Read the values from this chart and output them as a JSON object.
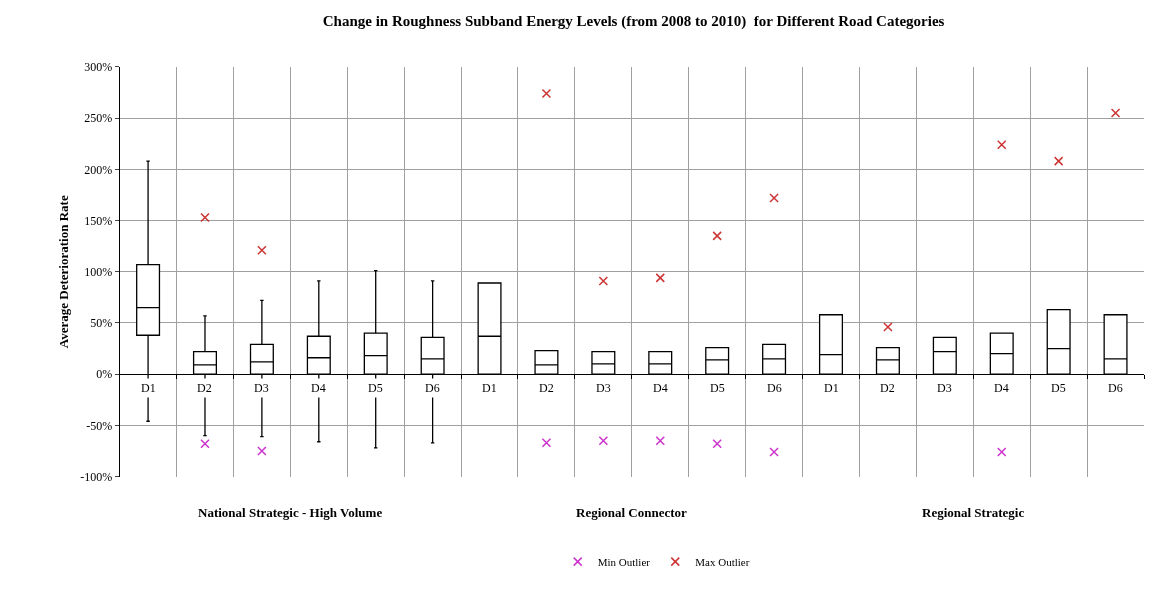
{
  "chart_data": {
    "type": "box",
    "title": "Change in Roughness Subband Energy Levels (from 2008 to 2010)  for Different Road Categories",
    "ylabel": "Average Deterioration Rate",
    "categories": [
      "D1",
      "D2",
      "D3",
      "D4",
      "D5",
      "D6",
      "D1",
      "D2",
      "D3",
      "D4",
      "D5",
      "D6",
      "D1",
      "D2",
      "D3",
      "D4",
      "D5",
      "D6"
    ],
    "boxes": [
      {
        "low": -46,
        "q1": 38,
        "median": 65,
        "q3": 107,
        "high": 208
      },
      {
        "low": -60,
        "q1": 0,
        "median": 9,
        "q3": 22,
        "high": 57
      },
      {
        "low": -61,
        "q1": 0,
        "median": 12,
        "q3": 29,
        "high": 72
      },
      {
        "low": -66,
        "q1": 0,
        "median": 16,
        "q3": 37,
        "high": 91
      },
      {
        "low": -72,
        "q1": 0,
        "median": 18,
        "q3": 40,
        "high": 101
      },
      {
        "low": -67,
        "q1": 0,
        "median": 15,
        "q3": 36,
        "high": 91
      },
      {
        "low": 0,
        "q1": 0,
        "median": 37,
        "q3": 89,
        "high": 89
      },
      {
        "low": 0,
        "q1": 0,
        "median": 9,
        "q3": 23,
        "high": 23
      },
      {
        "low": 0,
        "q1": 0,
        "median": 10,
        "q3": 22,
        "high": 22
      },
      {
        "low": 0,
        "q1": 0,
        "median": 10,
        "q3": 22,
        "high": 22
      },
      {
        "low": 0,
        "q1": 0,
        "median": 14,
        "q3": 26,
        "high": 26
      },
      {
        "low": 0,
        "q1": 0,
        "median": 15,
        "q3": 29,
        "high": 29
      },
      {
        "low": 0,
        "q1": 0,
        "median": 19,
        "q3": 58,
        "high": 58
      },
      {
        "low": 0,
        "q1": 0,
        "median": 14,
        "q3": 26,
        "high": 26
      },
      {
        "low": 0,
        "q1": 0,
        "median": 22,
        "q3": 36,
        "high": 36
      },
      {
        "low": 0,
        "q1": 0,
        "median": 20,
        "q3": 40,
        "high": 40
      },
      {
        "low": 0,
        "q1": 0,
        "median": 25,
        "q3": 63,
        "high": 63
      },
      {
        "low": 0,
        "q1": 0,
        "median": 15,
        "q3": 58,
        "high": 58
      }
    ],
    "series": [
      {
        "name": "Min Outlier",
        "type": "scatter",
        "color": "#cc33cc",
        "values": [
          null,
          -68,
          -75,
          null,
          null,
          null,
          null,
          -67,
          -65,
          -65,
          -68,
          -76,
          null,
          null,
          null,
          -76,
          null,
          null
        ]
      },
      {
        "name": "Max Outlier",
        "type": "scatter",
        "color": "#cc3333",
        "values": [
          null,
          153,
          121,
          null,
          null,
          null,
          null,
          274,
          91,
          94,
          135,
          172,
          null,
          46,
          null,
          224,
          208,
          255
        ]
      }
    ],
    "marker": "cross",
    "ylim": [
      -100,
      300
    ],
    "yticks": [
      {
        "value": -100,
        "label": "-100%"
      },
      {
        "value": -50,
        "label": "-50%"
      },
      {
        "value": 0,
        "label": "0%"
      },
      {
        "value": 50,
        "label": "50%"
      },
      {
        "value": 100,
        "label": "100%"
      },
      {
        "value": 150,
        "label": "150%"
      },
      {
        "value": 200,
        "label": "200%"
      },
      {
        "value": 250,
        "label": "250%"
      },
      {
        "value": 300,
        "label": "300%"
      }
    ],
    "grid": true,
    "legend": "bottom",
    "annotations": [
      "National Strategic - High Volume",
      "Regional Connector",
      "Regional Strategic"
    ]
  }
}
